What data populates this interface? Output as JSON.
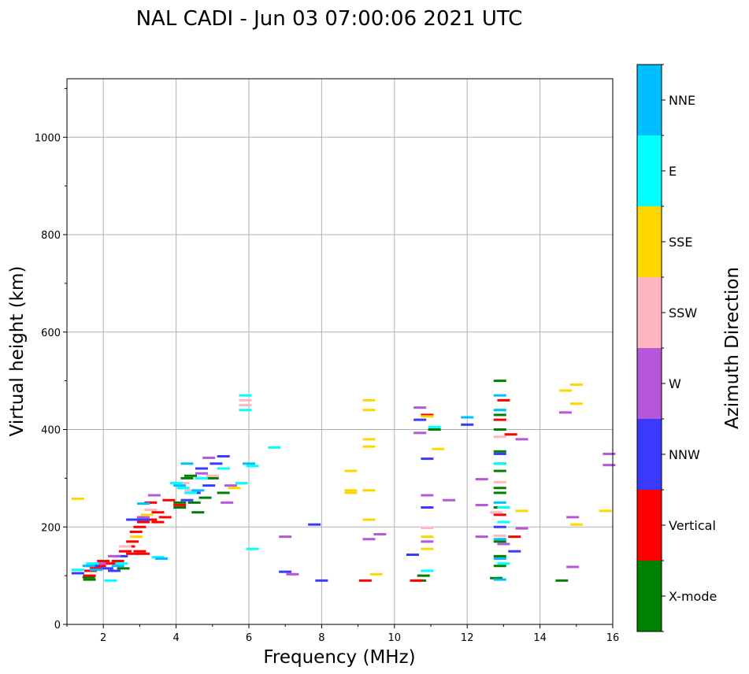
{
  "chart_data": {
    "type": "scatter",
    "title": "NAL CADI - Jun 03 07:00:06 2021 UTC",
    "xlabel": "Frequency (MHz)",
    "ylabel": "Virtual height (km)",
    "xlim": [
      1,
      16
    ],
    "ylim": [
      0,
      1120
    ],
    "xticks": [
      2,
      4,
      6,
      8,
      10,
      12,
      14,
      16
    ],
    "yticks": [
      0,
      200,
      400,
      600,
      800,
      1000
    ],
    "grid": true,
    "colorbar": {
      "title": "Azimuth Direction",
      "categories": [
        {
          "name": "X-mode",
          "color": "#008000"
        },
        {
          "name": "Vertical",
          "color": "#ff0000"
        },
        {
          "name": "NNW",
          "color": "#3a3aff"
        },
        {
          "name": "W",
          "color": "#b557d8"
        },
        {
          "name": "SSW",
          "color": "#ffb6c1"
        },
        {
          "name": "SSE",
          "color": "#ffd700"
        },
        {
          "name": "E",
          "color": "#00ffff"
        },
        {
          "name": "NNE",
          "color": "#00bfff"
        }
      ]
    },
    "series": [
      {
        "name": "X-mode",
        "points": [
          [
            1.62,
            92
          ],
          [
            1.6,
            97
          ],
          [
            2.55,
            115
          ],
          [
            4.1,
            240
          ],
          [
            4.1,
            250
          ],
          [
            4.3,
            300
          ],
          [
            4.5,
            250
          ],
          [
            4.6,
            230
          ],
          [
            4.8,
            260
          ],
          [
            5.3,
            270
          ],
          [
            5.0,
            300
          ],
          [
            10.7,
            90
          ],
          [
            10.8,
            100
          ],
          [
            12.8,
            95
          ],
          [
            12.9,
            120
          ],
          [
            12.9,
            140
          ],
          [
            12.9,
            170
          ],
          [
            12.9,
            240
          ],
          [
            12.9,
            270
          ],
          [
            12.9,
            280
          ],
          [
            12.9,
            315
          ],
          [
            12.9,
            330
          ],
          [
            12.9,
            355
          ],
          [
            12.9,
            400
          ],
          [
            12.9,
            430
          ],
          [
            12.9,
            500
          ],
          [
            14.6,
            90
          ],
          [
            11.1,
            400
          ],
          [
            4.4,
            305
          ]
        ]
      },
      {
        "name": "Vertical",
        "points": [
          [
            1.62,
            100
          ],
          [
            1.65,
            110
          ],
          [
            1.8,
            115
          ],
          [
            1.9,
            120
          ],
          [
            2.0,
            130
          ],
          [
            2.2,
            125
          ],
          [
            2.4,
            130
          ],
          [
            2.6,
            150
          ],
          [
            2.7,
            160
          ],
          [
            2.8,
            170
          ],
          [
            2.9,
            190
          ],
          [
            3.0,
            200
          ],
          [
            3.1,
            210
          ],
          [
            3.3,
            215
          ],
          [
            3.5,
            210
          ],
          [
            3.7,
            220
          ],
          [
            3.5,
            230
          ],
          [
            3.1,
            145
          ],
          [
            3.0,
            150
          ],
          [
            2.8,
            145
          ],
          [
            3.3,
            250
          ],
          [
            3.8,
            255
          ],
          [
            4.1,
            245
          ],
          [
            9.2,
            90
          ],
          [
            10.6,
            90
          ],
          [
            10.9,
            430
          ],
          [
            13.3,
            180
          ],
          [
            13.0,
            460
          ],
          [
            13.2,
            390
          ],
          [
            12.9,
            420
          ],
          [
            12.9,
            225
          ]
        ]
      },
      {
        "name": "NNW",
        "points": [
          [
            1.3,
            105
          ],
          [
            1.7,
            120
          ],
          [
            2.1,
            115
          ],
          [
            2.3,
            110
          ],
          [
            2.5,
            140
          ],
          [
            2.8,
            215
          ],
          [
            3.1,
            215
          ],
          [
            4.3,
            255
          ],
          [
            4.5,
            270
          ],
          [
            4.7,
            320
          ],
          [
            4.9,
            285
          ],
          [
            5.1,
            330
          ],
          [
            5.3,
            345
          ],
          [
            7.8,
            205
          ],
          [
            7.0,
            108
          ],
          [
            8.0,
            90
          ],
          [
            10.5,
            143
          ],
          [
            10.7,
            420
          ],
          [
            10.9,
            340
          ],
          [
            10.9,
            240
          ],
          [
            12.0,
            410
          ],
          [
            12.9,
            350
          ],
          [
            12.9,
            200
          ],
          [
            13.3,
            150
          ]
        ]
      },
      {
        "name": "W",
        "points": [
          [
            1.9,
            125
          ],
          [
            2.3,
            140
          ],
          [
            3.1,
            220
          ],
          [
            3.4,
            265
          ],
          [
            4.7,
            310
          ],
          [
            5.4,
            250
          ],
          [
            5.5,
            285
          ],
          [
            7.0,
            180
          ],
          [
            7.2,
            103
          ],
          [
            9.3,
            175
          ],
          [
            9.6,
            185
          ],
          [
            10.7,
            445
          ],
          [
            10.9,
            170
          ],
          [
            10.9,
            265
          ],
          [
            11.5,
            255
          ],
          [
            12.4,
            298
          ],
          [
            12.4,
            245
          ],
          [
            12.4,
            180
          ],
          [
            13.0,
            165
          ],
          [
            13.5,
            380
          ],
          [
            13.5,
            197
          ],
          [
            14.7,
            435
          ],
          [
            14.9,
            220
          ],
          [
            14.9,
            118
          ],
          [
            15.9,
            350
          ],
          [
            15.9,
            327
          ],
          [
            10.7,
            393
          ],
          [
            4.9,
            342
          ]
        ]
      },
      {
        "name": "SSW",
        "points": [
          [
            2.6,
            160
          ],
          [
            3.3,
            235
          ],
          [
            4.2,
            290
          ],
          [
            4.4,
            275
          ],
          [
            5.0,
            305
          ],
          [
            5.9,
            460
          ],
          [
            5.9,
            450
          ],
          [
            10.9,
            198
          ],
          [
            12.9,
            385
          ],
          [
            12.9,
            292
          ],
          [
            12.9,
            182
          ],
          [
            12.8,
            230
          ]
        ]
      },
      {
        "name": "SSE",
        "points": [
          [
            1.3,
            258
          ],
          [
            2.9,
            180
          ],
          [
            3.2,
            225
          ],
          [
            5.6,
            280
          ],
          [
            8.8,
            315
          ],
          [
            8.8,
            275
          ],
          [
            8.8,
            270
          ],
          [
            9.3,
            460
          ],
          [
            9.3,
            440
          ],
          [
            9.3,
            380
          ],
          [
            9.3,
            365
          ],
          [
            9.3,
            275
          ],
          [
            9.3,
            215
          ],
          [
            9.5,
            103
          ],
          [
            10.9,
            427
          ],
          [
            10.9,
            180
          ],
          [
            10.9,
            155
          ],
          [
            11.2,
            360
          ],
          [
            14.7,
            480
          ],
          [
            15.0,
            492
          ],
          [
            15.0,
            453
          ],
          [
            15.0,
            205
          ],
          [
            15.8,
            233
          ],
          [
            13.5,
            233
          ]
        ]
      },
      {
        "name": "E",
        "points": [
          [
            1.3,
            112
          ],
          [
            1.7,
            125
          ],
          [
            2.2,
            90
          ],
          [
            2.5,
            125
          ],
          [
            3.5,
            138
          ],
          [
            4.0,
            290
          ],
          [
            4.2,
            280
          ],
          [
            4.4,
            270
          ],
          [
            4.7,
            300
          ],
          [
            5.3,
            320
          ],
          [
            5.8,
            290
          ],
          [
            6.1,
            325
          ],
          [
            6.1,
            155
          ],
          [
            6.7,
            363
          ],
          [
            5.9,
            440
          ],
          [
            5.9,
            470
          ],
          [
            10.9,
            110
          ],
          [
            11.1,
            405
          ],
          [
            13.0,
            125
          ],
          [
            13.0,
            210
          ],
          [
            13.0,
            240
          ],
          [
            12.9,
            330
          ],
          [
            12.9,
            440
          ]
        ]
      },
      {
        "name": "NNE",
        "points": [
          [
            1.6,
            120
          ],
          [
            1.8,
            112
          ],
          [
            2.4,
            120
          ],
          [
            3.1,
            248
          ],
          [
            3.6,
            135
          ],
          [
            4.3,
            330
          ],
          [
            4.1,
            285
          ],
          [
            4.6,
            275
          ],
          [
            12.0,
            425
          ],
          [
            12.9,
            470
          ],
          [
            12.9,
            440
          ],
          [
            12.9,
            250
          ],
          [
            12.9,
            175
          ],
          [
            12.9,
            92
          ],
          [
            12.9,
            135
          ],
          [
            6.0,
            330
          ]
        ]
      }
    ]
  }
}
